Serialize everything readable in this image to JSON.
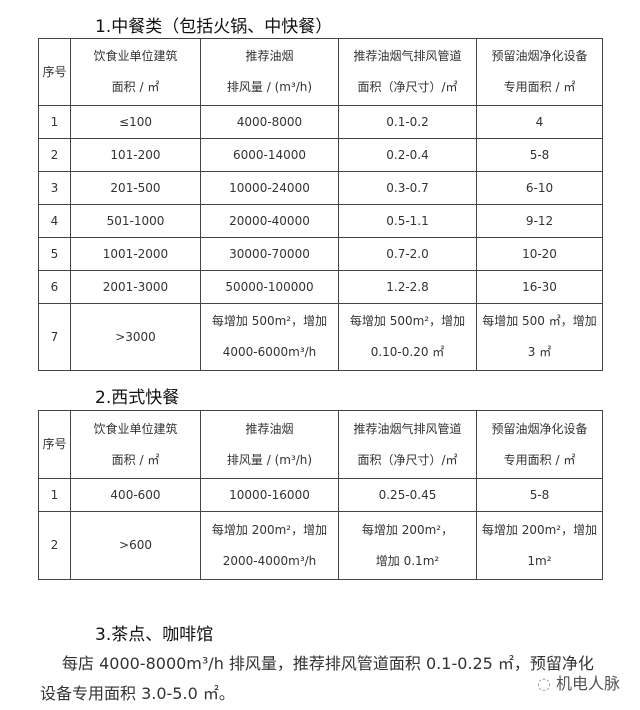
{
  "section1": {
    "title": "1.中餐类（包括火锅、中快餐）",
    "headers": [
      [
        "序号"
      ],
      [
        "饮食业单位建筑",
        "面积 / ㎡"
      ],
      [
        "推荐油烟",
        "排风量 / (m³/h)"
      ],
      [
        "推荐油烟气排风管道",
        "面积（净尺寸）/㎡"
      ],
      [
        "预留油烟净化设备",
        "专用面积 / ㎡"
      ]
    ],
    "rows": [
      [
        [
          "1"
        ],
        [
          "≤100"
        ],
        [
          "4000-8000"
        ],
        [
          "0.1-0.2"
        ],
        [
          "4"
        ]
      ],
      [
        [
          "2"
        ],
        [
          "101-200"
        ],
        [
          "6000-14000"
        ],
        [
          "0.2-0.4"
        ],
        [
          "5-8"
        ]
      ],
      [
        [
          "3"
        ],
        [
          "201-500"
        ],
        [
          "10000-24000"
        ],
        [
          "0.3-0.7"
        ],
        [
          "6-10"
        ]
      ],
      [
        [
          "4"
        ],
        [
          "501-1000"
        ],
        [
          "20000-40000"
        ],
        [
          "0.5-1.1"
        ],
        [
          "9-12"
        ]
      ],
      [
        [
          "5"
        ],
        [
          "1001-2000"
        ],
        [
          "30000-70000"
        ],
        [
          "0.7-2.0"
        ],
        [
          "10-20"
        ]
      ],
      [
        [
          "6"
        ],
        [
          "2001-3000"
        ],
        [
          "50000-100000"
        ],
        [
          "1.2-2.8"
        ],
        [
          "16-30"
        ]
      ],
      [
        [
          "7"
        ],
        [
          ">3000"
        ],
        [
          "每增加 500m²，增加",
          "4000-6000m³/h"
        ],
        [
          "每增加 500m²，增加",
          "0.10-0.20 ㎡"
        ],
        [
          "每增加 500 ㎡，增加",
          "3 ㎡"
        ]
      ]
    ]
  },
  "section2": {
    "title": "2.西式快餐",
    "headers": [
      [
        "序号"
      ],
      [
        "饮食业单位建筑",
        "面积 / ㎡"
      ],
      [
        "推荐油烟",
        "排风量 / (m³/h)"
      ],
      [
        "推荐油烟气排风管道",
        "面积（净尺寸）/㎡"
      ],
      [
        "预留油烟净化设备",
        "专用面积 / ㎡"
      ]
    ],
    "rows": [
      [
        [
          "1"
        ],
        [
          "400-600"
        ],
        [
          "10000-16000"
        ],
        [
          "0.25-0.45"
        ],
        [
          "5-8"
        ]
      ],
      [
        [
          "2"
        ],
        [
          ">600"
        ],
        [
          "每增加 200m²，增加",
          "2000-4000m³/h"
        ],
        [
          "每增加 200m²，",
          "增加 0.1m²"
        ],
        [
          "每增加 200m²，增加",
          "1m²"
        ]
      ]
    ]
  },
  "section3": {
    "title": "3.茶点、咖啡馆",
    "line1": "每店 4000-8000m³/h 排风量，推荐排风管道面积 0.1-0.25 ㎡，预留净化",
    "line2": "设备专用面积 3.0-5.0 ㎡。"
  },
  "watermark": "机电人脉"
}
